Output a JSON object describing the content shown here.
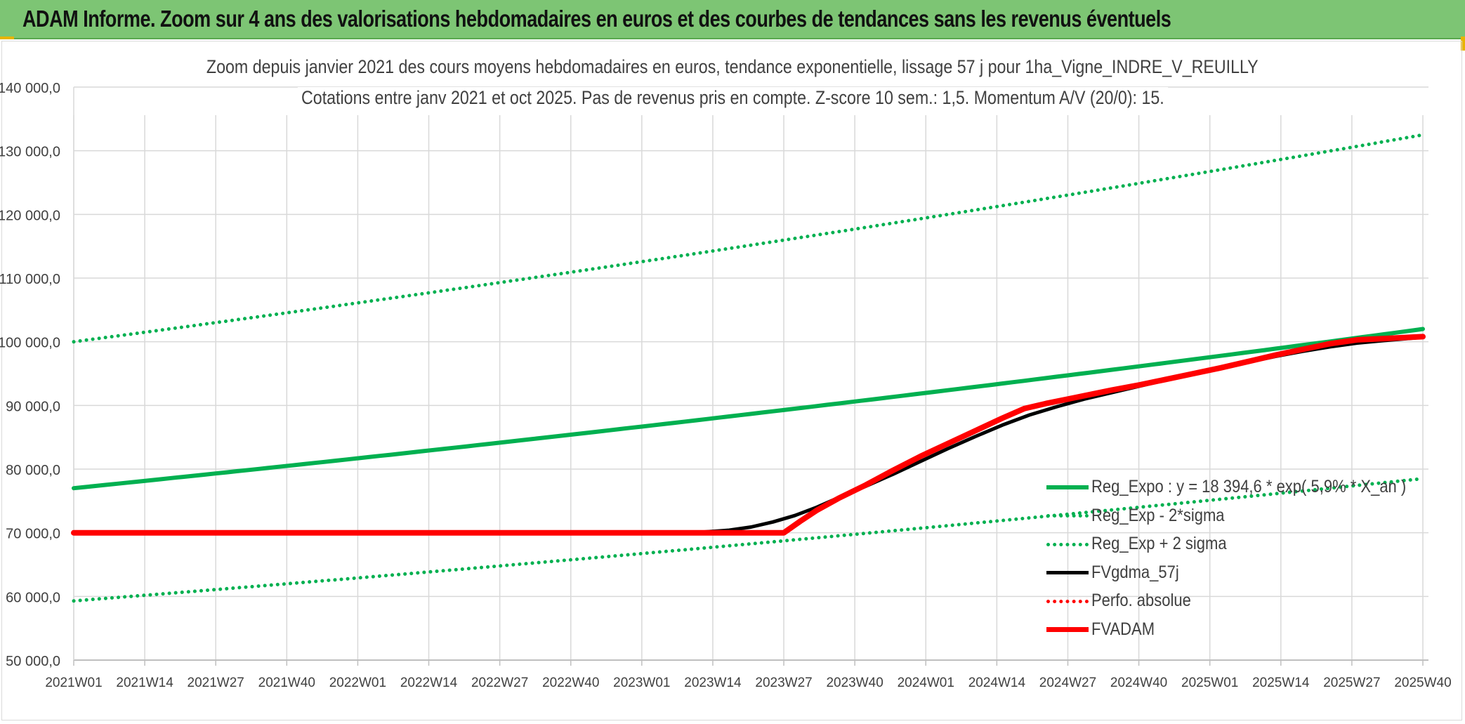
{
  "banner": {
    "title": "ADAM Informe. Zoom sur 4 ans des valorisations hebdomadaires en euros et des courbes de tendances sans les revenus éventuels"
  },
  "chart_data": {
    "type": "line",
    "title_line1": "Zoom depuis janvier 2021 des cours moyens hebdomadaires en euros, tendance exponentielle, lissage 57 j pour 1ha_Vigne_INDRE_V_REUILLY",
    "title_line2": "Cotations entre janv 2021 et oct 2025. Pas de revenus pris en compte. Z-score 10 sem.: 1,5. Momentum A/V (20/0): 15.",
    "xlabel": "",
    "ylabel": "",
    "x_index_range": [
      0,
      247
    ],
    "x_ticks": [
      {
        "label": "2021W01",
        "index": 0
      },
      {
        "label": "2021W14",
        "index": 13
      },
      {
        "label": "2021W27",
        "index": 26
      },
      {
        "label": "2021W40",
        "index": 39
      },
      {
        "label": "2022W01",
        "index": 52
      },
      {
        "label": "2022W14",
        "index": 65
      },
      {
        "label": "2022W27",
        "index": 78
      },
      {
        "label": "2022W40",
        "index": 91
      },
      {
        "label": "2023W01",
        "index": 104
      },
      {
        "label": "2023W14",
        "index": 117
      },
      {
        "label": "2023W27",
        "index": 130
      },
      {
        "label": "2023W40",
        "index": 143
      },
      {
        "label": "2024W01",
        "index": 156
      },
      {
        "label": "2024W14",
        "index": 169
      },
      {
        "label": "2024W27",
        "index": 182
      },
      {
        "label": "2024W40",
        "index": 195
      },
      {
        "label": "2025W01",
        "index": 208
      },
      {
        "label": "2025W14",
        "index": 221
      },
      {
        "label": "2025W27",
        "index": 234
      },
      {
        "label": "2025W40",
        "index": 247
      }
    ],
    "ylim": [
      50000,
      140000
    ],
    "y_ticks": [
      {
        "value": 50000,
        "label": "50 000,0"
      },
      {
        "value": 60000,
        "label": "60 000,0"
      },
      {
        "value": 70000,
        "label": "70 000,0"
      },
      {
        "value": 80000,
        "label": "80 000,0"
      },
      {
        "value": 90000,
        "label": "90 000,0"
      },
      {
        "value": 100000,
        "label": "100 000,0"
      },
      {
        "value": 110000,
        "label": "110 000,0"
      },
      {
        "value": 120000,
        "label": "120 000,0"
      },
      {
        "value": 130000,
        "label": "130 000,0"
      },
      {
        "value": 140000,
        "label": "140 000,0"
      }
    ],
    "grid": true,
    "legend_position": "bottom-right",
    "series": [
      {
        "name": "Reg_Expo : y = 18 394,6 * exp( 5,9% * X_an )",
        "color": "#00b050",
        "style": "solid",
        "width": 6,
        "shape": "exponential",
        "points": [
          [
            0,
            77000
          ],
          [
            247,
            102000
          ]
        ]
      },
      {
        "name": "Reg_Exp - 2*sigma",
        "color": "#00b050",
        "style": "dotted",
        "width": 5,
        "shape": "exponential",
        "points": [
          [
            0,
            59300
          ],
          [
            247,
            78500
          ]
        ]
      },
      {
        "name": "Reg_Exp + 2 sigma",
        "color": "#00b050",
        "style": "dotted",
        "width": 5,
        "shape": "exponential",
        "points": [
          [
            0,
            100000
          ],
          [
            247,
            132500
          ]
        ]
      },
      {
        "name": "FVgdma_57j",
        "color": "#000000",
        "style": "solid",
        "width": 5,
        "shape": "polyline",
        "points": [
          [
            0,
            70000
          ],
          [
            108,
            70000
          ],
          [
            115,
            70100
          ],
          [
            120,
            70400
          ],
          [
            124,
            70900
          ],
          [
            128,
            71700
          ],
          [
            132,
            72700
          ],
          [
            136,
            74000
          ],
          [
            140,
            75500
          ],
          [
            145,
            77300
          ],
          [
            150,
            79200
          ],
          [
            155,
            81200
          ],
          [
            160,
            83200
          ],
          [
            165,
            85100
          ],
          [
            170,
            86900
          ],
          [
            175,
            88500
          ],
          [
            180,
            89800
          ],
          [
            185,
            91000
          ],
          [
            190,
            92000
          ],
          [
            195,
            93000
          ],
          [
            200,
            94000
          ],
          [
            205,
            95000
          ],
          [
            210,
            95900
          ],
          [
            215,
            96800
          ],
          [
            220,
            97700
          ],
          [
            225,
            98500
          ],
          [
            230,
            99200
          ],
          [
            235,
            99800
          ],
          [
            240,
            100200
          ],
          [
            247,
            100700
          ]
        ]
      },
      {
        "name": "Perfo. absolue",
        "color": "#ff0000",
        "style": "dotted",
        "width": 5,
        "shape": "polyline",
        "points": []
      },
      {
        "name": "FVADAM",
        "color": "#ff0000",
        "style": "solid",
        "width": 8,
        "shape": "polyline",
        "points": [
          [
            0,
            70000
          ],
          [
            129,
            70000
          ],
          [
            130,
            70000
          ],
          [
            133,
            71800
          ],
          [
            136,
            73500
          ],
          [
            140,
            75400
          ],
          [
            145,
            77500
          ],
          [
            150,
            79800
          ],
          [
            155,
            82000
          ],
          [
            160,
            84000
          ],
          [
            165,
            86000
          ],
          [
            170,
            88000
          ],
          [
            174,
            89500
          ],
          [
            178,
            90300
          ],
          [
            182,
            91000
          ],
          [
            186,
            91700
          ],
          [
            190,
            92400
          ],
          [
            195,
            93200
          ],
          [
            200,
            94100
          ],
          [
            205,
            95000
          ],
          [
            210,
            95900
          ],
          [
            215,
            96900
          ],
          [
            220,
            97900
          ],
          [
            225,
            98800
          ],
          [
            230,
            99700
          ],
          [
            235,
            100300
          ],
          [
            240,
            100500
          ],
          [
            247,
            100800
          ]
        ]
      }
    ]
  }
}
